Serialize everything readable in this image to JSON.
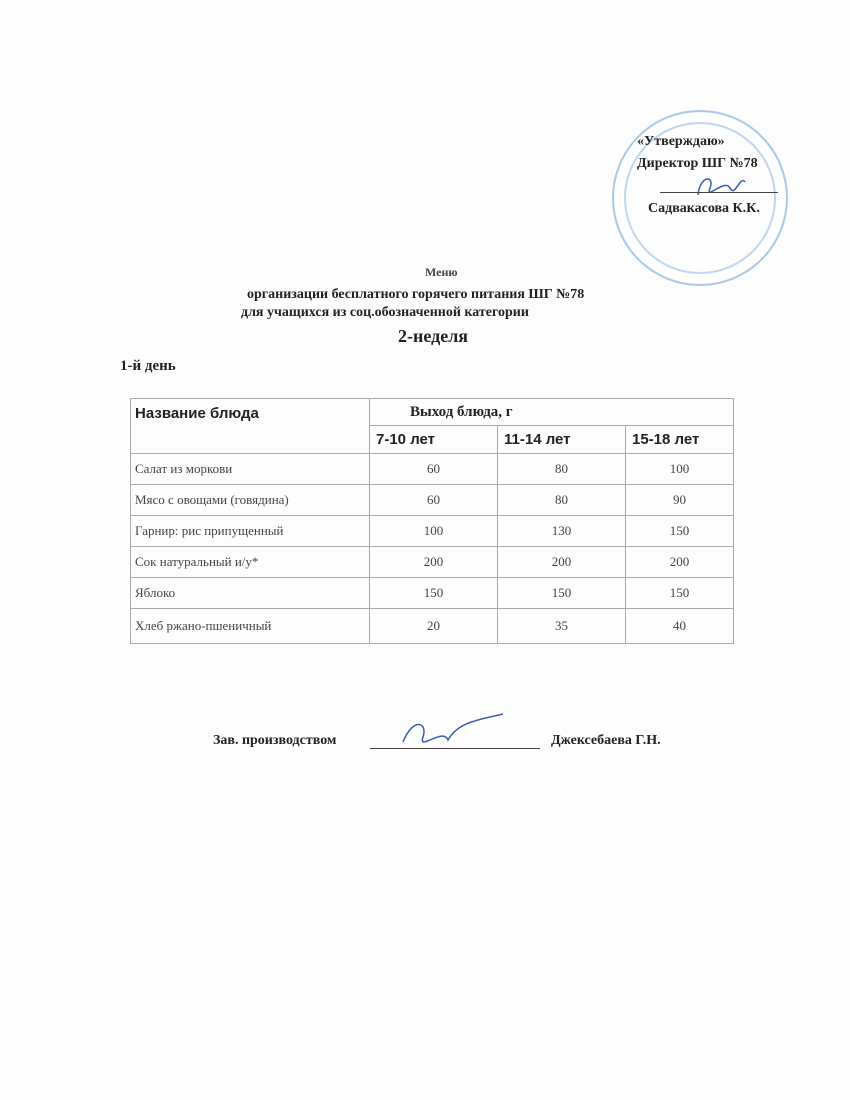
{
  "approval": {
    "title": "«Утверждаю»",
    "position": "Директор ШГ №78",
    "name": "Садвакасова К.К."
  },
  "heading": {
    "line1": "Меню",
    "line2": "организации бесплатного горячего питания ШГ №78",
    "line3": "для учащихся из соц.обозначенной категории",
    "week": "2-неделя"
  },
  "day": "1-й день",
  "table": {
    "col_name": "Название блюда",
    "col_output": "Выход блюда, г",
    "age_groups": [
      "7-10 лет",
      "11-14 лет",
      "15-18 лет"
    ],
    "rows": [
      {
        "dish": "Салат из моркови",
        "values": [
          "60",
          "80",
          "100"
        ]
      },
      {
        "dish": "Мясо с овощами (говядина)",
        "values": [
          "60",
          "80",
          "90"
        ]
      },
      {
        "dish": "Гарнир: рис припущенный",
        "values": [
          "100",
          "130",
          "150"
        ]
      },
      {
        "dish": "Сок натуральный и/у*",
        "values": [
          "200",
          "200",
          "200"
        ]
      },
      {
        "dish": "Яблоко",
        "values": [
          "150",
          "150",
          "150"
        ]
      },
      {
        "dish": "Хлеб ржано-пшеничный",
        "values": [
          "20",
          "35",
          "40"
        ]
      }
    ]
  },
  "footer": {
    "role": "Зав. производством",
    "name": "Джексебаева Г.Н."
  }
}
